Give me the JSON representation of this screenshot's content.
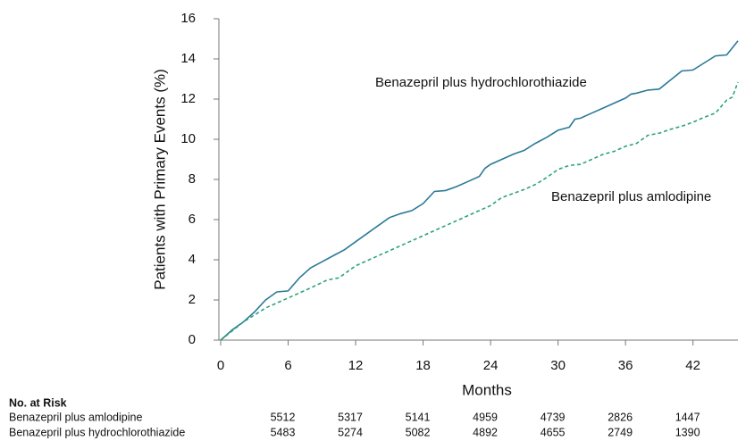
{
  "chart_data": {
    "type": "line",
    "y_label": "Patients with Primary Events (%)",
    "x_label": "Months",
    "xlim": [
      0,
      46
    ],
    "ylim": [
      0,
      16
    ],
    "xticks": [
      0,
      6,
      12,
      18,
      24,
      30,
      36,
      42
    ],
    "yticks": [
      0,
      2,
      4,
      6,
      8,
      10,
      12,
      14,
      16
    ],
    "grid": false,
    "series": [
      {
        "name": "Benazepril plus hydrochlorothiazide",
        "color": "#2b7a98",
        "line_style": "solid",
        "x": [
          0,
          1,
          2,
          3,
          4,
          5,
          6,
          7,
          8,
          9,
          10,
          11,
          12,
          13,
          14,
          15,
          16,
          17,
          18,
          19,
          20,
          21,
          22,
          23,
          23.5,
          24,
          25,
          26,
          27,
          28,
          29,
          30,
          31,
          31.5,
          32,
          33,
          34,
          35,
          36,
          36.5,
          37,
          38,
          39,
          40,
          41,
          42,
          43,
          44,
          45,
          45.5,
          46
        ],
        "values": [
          0,
          0.5,
          0.9,
          1.4,
          2.0,
          2.4,
          2.45,
          3.1,
          3.6,
          3.9,
          4.2,
          4.5,
          4.9,
          5.3,
          5.7,
          6.1,
          6.3,
          6.45,
          6.8,
          7.4,
          7.45,
          7.65,
          7.9,
          8.15,
          8.55,
          8.75,
          9.0,
          9.25,
          9.45,
          9.8,
          10.1,
          10.45,
          10.6,
          11.0,
          11.05,
          11.3,
          11.55,
          11.8,
          12.05,
          12.25,
          12.3,
          12.45,
          12.5,
          12.95,
          13.4,
          13.45,
          13.8,
          14.15,
          14.2,
          14.55,
          14.9
        ]
      },
      {
        "name": "Benazepril plus amlodipine",
        "color": "#2aa27c",
        "line_style": "dashed",
        "x": [
          0,
          2,
          4,
          6,
          8,
          9.5,
          10.5,
          12,
          14,
          16,
          18,
          20,
          22,
          24,
          25,
          27,
          28,
          29,
          30,
          31,
          32,
          33,
          34,
          35,
          36,
          37,
          38,
          39,
          40,
          41,
          42,
          43,
          44,
          45,
          45.5,
          46
        ],
        "values": [
          0,
          0.9,
          1.6,
          2.1,
          2.6,
          3.0,
          3.1,
          3.7,
          4.2,
          4.7,
          5.2,
          5.7,
          6.2,
          6.7,
          7.1,
          7.5,
          7.75,
          8.1,
          8.5,
          8.7,
          8.75,
          9.0,
          9.25,
          9.4,
          9.65,
          9.8,
          10.2,
          10.3,
          10.5,
          10.65,
          10.85,
          11.1,
          11.3,
          11.95,
          12.1,
          12.85
        ]
      }
    ]
  },
  "risk_table": {
    "title": "No. at Risk",
    "rows": [
      {
        "label": "Benazepril plus amlodipine",
        "values": [
          5512,
          5317,
          5141,
          4959,
          4739,
          2826,
          1447
        ]
      },
      {
        "label": "Benazepril plus hydrochlorothiazide",
        "values": [
          5483,
          5274,
          5082,
          4892,
          4655,
          2749,
          1390
        ]
      }
    ]
  }
}
